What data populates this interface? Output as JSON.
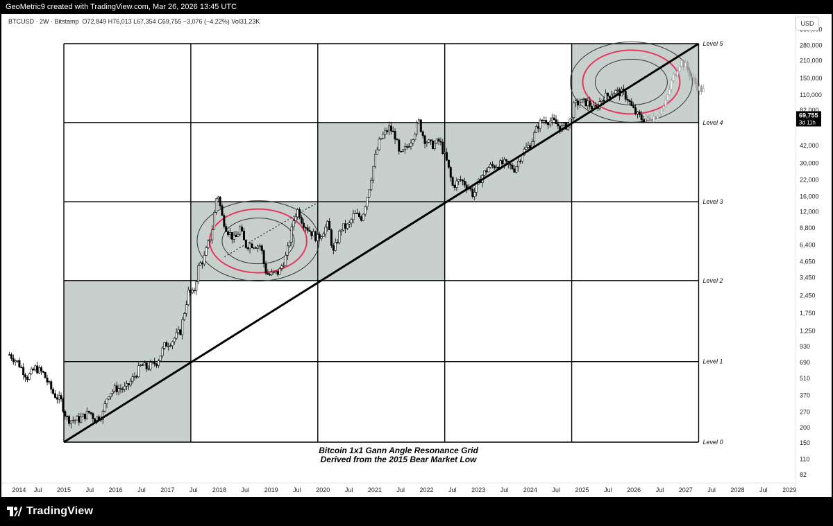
{
  "header": {
    "credit": "GeoMetric9 created with TradingView.com, Mar 26, 2026 13:45 UTC"
  },
  "symbol_bar": {
    "symbol": "BTCUSD",
    "interval": "2W",
    "exchange": "Bitstamp",
    "open": "O72,849",
    "high": "H76,013",
    "low": "L67,354",
    "close": "C69,755",
    "change": "−3,076 (−4.22%)",
    "volume": "Vol31.23K",
    "currency": "USD"
  },
  "price_badge": {
    "price": "69,755",
    "countdown": "3d 11h",
    "color": "#000000"
  },
  "footer": {
    "brand": "TradingView",
    "logo_icon": "tradingview-logo-icon"
  },
  "colors": {
    "shaded_box": "#c8d0cd",
    "ring_accent": "#e8345c",
    "grid_line": "#000000",
    "background": "#ffffff"
  },
  "chart_data": {
    "type": "candlestick",
    "y_scale": "log",
    "y_tick_labels": [
      "380,000",
      "280,000",
      "210,000",
      "150,000",
      "110,000",
      "82,000",
      "42,000",
      "30,000",
      "22,000",
      "16,000",
      "12,000",
      "8,800",
      "6,400",
      "4,650",
      "3,450",
      "2,450",
      "1,750",
      "1,250",
      "930",
      "690",
      "510",
      "370",
      "270",
      "200",
      "150",
      "110",
      "82"
    ],
    "y_tick_values": [
      380000,
      280000,
      210000,
      150000,
      110000,
      82000,
      42000,
      30000,
      22000,
      16000,
      12000,
      8800,
      6400,
      4650,
      3450,
      2450,
      1750,
      1250,
      930,
      690,
      510,
      370,
      270,
      200,
      150,
      110,
      82
    ],
    "x_tick_labels": [
      "2014",
      "Jul",
      "2015",
      "Jul",
      "2016",
      "Jul",
      "2017",
      "Jul",
      "2018",
      "Jul",
      "2019",
      "Jul",
      "2020",
      "Jul",
      "2021",
      "Jul",
      "2022",
      "Jul",
      "2023",
      "Jul",
      "2024",
      "Jul",
      "2025",
      "Jul",
      "2026",
      "Jul",
      "2027",
      "Jul",
      "2028",
      "Jul",
      "2029"
    ],
    "x_tick_values": [
      2014.0,
      2014.5,
      2015.0,
      2015.5,
      2016.0,
      2016.5,
      2017.0,
      2017.5,
      2018.0,
      2018.5,
      2019.0,
      2019.5,
      2020.0,
      2020.5,
      2021.0,
      2021.5,
      2022.0,
      2022.5,
      2023.0,
      2023.5,
      2024.0,
      2024.5,
      2025.0,
      2025.5,
      2026.0,
      2026.5,
      2027.0,
      2027.5,
      2028.0,
      2028.5,
      2029.0
    ],
    "grid": {
      "columns_x": [
        2015.0,
        2017.45,
        2019.9,
        2022.35,
        2024.8,
        2027.25
      ],
      "levels": [
        {
          "label": "Level 0",
          "value": 152
        },
        {
          "label": "Level 1",
          "value": 700
        },
        {
          "label": "Level 2",
          "value": 3250
        },
        {
          "label": "Level 3",
          "value": 14500
        },
        {
          "label": "Level 4",
          "value": 65000
        },
        {
          "label": "Level 5",
          "value": 290000
        }
      ],
      "shaded_cells": [
        [
          0,
          0
        ],
        [
          0,
          1
        ],
        [
          1,
          2
        ],
        [
          2,
          2
        ],
        [
          2,
          3
        ],
        [
          3,
          3
        ],
        [
          4,
          4
        ]
      ]
    },
    "gann_line": {
      "from": [
        2015.0,
        152
      ],
      "to": [
        2027.25,
        290000
      ]
    },
    "dotted_line": {
      "from": [
        2018.1,
        5100
      ],
      "to": [
        2019.9,
        14300
      ]
    },
    "ring_centers": [
      [
        2018.75,
        6900
      ],
      [
        2025.95,
        140000
      ]
    ],
    "annotation": [
      "Bitcoin 1x1 Gann Angle  Resonance Grid",
      "Derived from the 2015 Bear Market Low"
    ],
    "price_path": [
      [
        2013.95,
        800
      ],
      [
        2014.1,
        700
      ],
      [
        2014.3,
        520
      ],
      [
        2014.45,
        620
      ],
      [
        2014.6,
        560
      ],
      [
        2014.8,
        380
      ],
      [
        2014.95,
        330
      ],
      [
        2015.05,
        240
      ],
      [
        2015.15,
        230
      ],
      [
        2015.3,
        235
      ],
      [
        2015.5,
        270
      ],
      [
        2015.6,
        235
      ],
      [
        2015.75,
        260
      ],
      [
        2015.85,
        380
      ],
      [
        2016.0,
        420
      ],
      [
        2016.2,
        420
      ],
      [
        2016.4,
        560
      ],
      [
        2016.5,
        660
      ],
      [
        2016.6,
        620
      ],
      [
        2016.8,
        700
      ],
      [
        2016.95,
        960
      ],
      [
        2017.1,
        1050
      ],
      [
        2017.25,
        1250
      ],
      [
        2017.4,
        2600
      ],
      [
        2017.5,
        2500
      ],
      [
        2017.6,
        4300
      ],
      [
        2017.7,
        4900
      ],
      [
        2017.85,
        8000
      ],
      [
        2017.96,
        18000
      ],
      [
        2018.05,
        11000
      ],
      [
        2018.15,
        8500
      ],
      [
        2018.3,
        7000
      ],
      [
        2018.4,
        8800
      ],
      [
        2018.5,
        6300
      ],
      [
        2018.6,
        6500
      ],
      [
        2018.8,
        6300
      ],
      [
        2018.88,
        4000
      ],
      [
        2018.95,
        3600
      ],
      [
        2019.15,
        3800
      ],
      [
        2019.3,
        5300
      ],
      [
        2019.45,
        11000
      ],
      [
        2019.52,
        12500
      ],
      [
        2019.6,
        10000
      ],
      [
        2019.75,
        8300
      ],
      [
        2019.9,
        7200
      ],
      [
        2020.1,
        9500
      ],
      [
        2020.2,
        5500
      ],
      [
        2020.35,
        8800
      ],
      [
        2020.5,
        9200
      ],
      [
        2020.6,
        11500
      ],
      [
        2020.75,
        10700
      ],
      [
        2020.88,
        18000
      ],
      [
        2021.0,
        33000
      ],
      [
        2021.1,
        47000
      ],
      [
        2021.28,
        59000
      ],
      [
        2021.4,
        50000
      ],
      [
        2021.48,
        34000
      ],
      [
        2021.6,
        40000
      ],
      [
        2021.7,
        47000
      ],
      [
        2021.85,
        66000
      ],
      [
        2021.95,
        48000
      ],
      [
        2022.1,
        42000
      ],
      [
        2022.25,
        46000
      ],
      [
        2022.4,
        30000
      ],
      [
        2022.5,
        19500
      ],
      [
        2022.65,
        22000
      ],
      [
        2022.8,
        19500
      ],
      [
        2022.9,
        16500
      ],
      [
        2023.05,
        23000
      ],
      [
        2023.2,
        28000
      ],
      [
        2023.5,
        30000
      ],
      [
        2023.7,
        27000
      ],
      [
        2023.85,
        37000
      ],
      [
        2024.0,
        43000
      ],
      [
        2024.15,
        62000
      ],
      [
        2024.25,
        69000
      ],
      [
        2024.45,
        66000
      ],
      [
        2024.6,
        58000
      ],
      [
        2024.75,
        64000
      ],
      [
        2024.85,
        90000
      ],
      [
        2024.95,
        96000
      ],
      [
        2025.1,
        95000
      ],
      [
        2025.25,
        83000
      ],
      [
        2025.4,
        105000
      ],
      [
        2025.5,
        108000
      ],
      [
        2025.6,
        117000
      ],
      [
        2025.78,
        114000
      ],
      [
        2025.88,
        103000
      ],
      [
        2025.95,
        88000
      ],
      [
        2026.05,
        76000
      ],
      [
        2026.15,
        70000
      ],
      [
        2026.23,
        69755
      ]
    ],
    "ghost_path": [
      [
        2026.23,
        69755
      ],
      [
        2026.4,
        73000
      ],
      [
        2026.6,
        90000
      ],
      [
        2026.75,
        150000
      ],
      [
        2026.9,
        210000
      ],
      [
        2027.0,
        190000
      ],
      [
        2027.12,
        150000
      ],
      [
        2027.25,
        125000
      ],
      [
        2027.35,
        118000
      ]
    ]
  }
}
